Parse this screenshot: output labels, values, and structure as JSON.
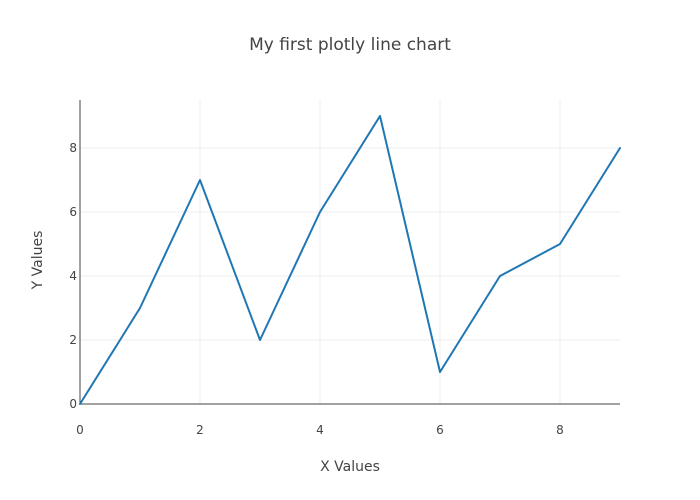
{
  "chart_data": {
    "type": "line",
    "title": "My first plotly line chart",
    "xlabel": "X Values",
    "ylabel": "Y Values",
    "x": [
      0,
      1,
      2,
      3,
      4,
      5,
      6,
      7,
      8,
      9
    ],
    "series": [
      {
        "values": [
          0,
          3,
          7,
          2,
          6,
          9,
          1,
          4,
          5,
          8
        ]
      }
    ],
    "xlim": [
      0,
      9
    ],
    "ylim": [
      -0.5,
      9.5
    ],
    "x_ticks": [
      0,
      2,
      4,
      6,
      8
    ],
    "y_ticks": [
      0,
      2,
      4,
      6,
      8
    ],
    "grid": true,
    "colors": {
      "line": "#1f77b4",
      "grid": "#eeeeee",
      "axis": "#444444",
      "text": "#444444"
    }
  }
}
